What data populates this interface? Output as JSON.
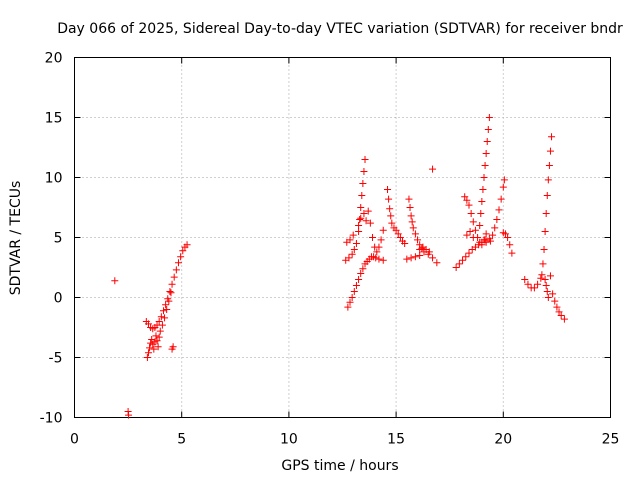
{
  "chart_data": {
    "type": "scatter",
    "title": "Day 066 of 2025, Sidereal Day-to-day VTEC variation (SDTVAR) for receiver bndr",
    "xlabel": "GPS time / hours",
    "ylabel": "SDTVAR / TECUs",
    "xlim": [
      0,
      25
    ],
    "ylim": [
      -10,
      20
    ],
    "xticks": [
      0,
      5,
      10,
      15,
      20,
      25
    ],
    "yticks": [
      -10,
      -5,
      0,
      5,
      10,
      15,
      20
    ],
    "xtick_labels": [
      "0",
      "5",
      "10",
      "15",
      "20",
      "25"
    ],
    "ytick_labels": [
      "-10",
      "-5",
      "0",
      "5",
      "10",
      "15",
      "20"
    ],
    "grid": true,
    "marker": "+",
    "color": "#ff0000",
    "points": [
      [
        1.88,
        1.4
      ],
      [
        2.5,
        -9.5
      ],
      [
        2.52,
        -9.8
      ],
      [
        4.55,
        -4.3
      ],
      [
        4.6,
        -4.1
      ],
      [
        16.7,
        10.7
      ],
      [
        3.35,
        -2.0
      ],
      [
        3.45,
        -2.2
      ],
      [
        3.55,
        -2.5
      ],
      [
        3.65,
        -2.6
      ],
      [
        3.75,
        -2.5
      ],
      [
        3.85,
        -2.3
      ],
      [
        3.95,
        -2.0
      ],
      [
        4.05,
        -1.6
      ],
      [
        4.15,
        -1.1
      ],
      [
        4.25,
        -0.6
      ],
      [
        4.35,
        -0.1
      ],
      [
        4.45,
        0.5
      ],
      [
        4.55,
        1.1
      ],
      [
        4.65,
        1.7
      ],
      [
        4.75,
        2.3
      ],
      [
        4.85,
        2.9
      ],
      [
        4.95,
        3.4
      ],
      [
        5.05,
        3.9
      ],
      [
        5.15,
        4.2
      ],
      [
        5.25,
        4.4
      ],
      [
        3.4,
        -5.0
      ],
      [
        3.45,
        -4.6
      ],
      [
        3.5,
        -4.2
      ],
      [
        3.55,
        -3.8
      ],
      [
        3.6,
        -3.5
      ],
      [
        3.65,
        -3.9
      ],
      [
        3.7,
        -4.3
      ],
      [
        3.75,
        -3.7
      ],
      [
        3.8,
        -3.2
      ],
      [
        3.85,
        -3.6
      ],
      [
        3.9,
        -4.1
      ],
      [
        3.95,
        -3.3
      ],
      [
        4.0,
        -2.8
      ],
      [
        4.1,
        -2.3
      ],
      [
        4.2,
        -1.7
      ],
      [
        4.3,
        -1.0
      ],
      [
        4.4,
        -0.3
      ],
      [
        4.5,
        0.4
      ],
      [
        12.75,
        -0.8
      ],
      [
        12.85,
        -0.4
      ],
      [
        12.95,
        0.0
      ],
      [
        13.05,
        0.5
      ],
      [
        13.15,
        1.0
      ],
      [
        13.25,
        1.5
      ],
      [
        13.35,
        2.0
      ],
      [
        13.45,
        2.4
      ],
      [
        13.55,
        2.8
      ],
      [
        13.65,
        3.0
      ],
      [
        13.75,
        3.2
      ],
      [
        13.85,
        3.4
      ],
      [
        13.95,
        3.4
      ],
      [
        14.05,
        3.3
      ],
      [
        14.2,
        3.2
      ],
      [
        14.4,
        3.1
      ],
      [
        12.65,
        3.1
      ],
      [
        12.8,
        3.3
      ],
      [
        12.95,
        3.6
      ],
      [
        13.05,
        4.0
      ],
      [
        13.15,
        4.5
      ],
      [
        13.25,
        5.5
      ],
      [
        13.3,
        6.5
      ],
      [
        13.35,
        7.5
      ],
      [
        13.4,
        8.5
      ],
      [
        13.45,
        9.5
      ],
      [
        13.5,
        10.5
      ],
      [
        13.55,
        11.5
      ],
      [
        13.25,
        6.0
      ],
      [
        13.35,
        6.6
      ],
      [
        13.5,
        7.0
      ],
      [
        13.6,
        6.4
      ],
      [
        13.7,
        7.2
      ],
      [
        13.8,
        6.2
      ],
      [
        13.9,
        5.0
      ],
      [
        14.0,
        4.2
      ],
      [
        14.1,
        3.8
      ],
      [
        14.2,
        4.2
      ],
      [
        14.3,
        4.8
      ],
      [
        14.4,
        5.6
      ],
      [
        12.7,
        4.6
      ],
      [
        12.85,
        4.8
      ],
      [
        13.0,
        5.2
      ],
      [
        14.6,
        9.0
      ],
      [
        14.65,
        8.2
      ],
      [
        14.7,
        7.4
      ],
      [
        14.75,
        6.8
      ],
      [
        14.8,
        6.2
      ],
      [
        14.9,
        5.8
      ],
      [
        15.0,
        5.6
      ],
      [
        15.1,
        5.3
      ],
      [
        15.2,
        5.0
      ],
      [
        15.3,
        4.7
      ],
      [
        15.4,
        4.5
      ],
      [
        15.6,
        8.2
      ],
      [
        15.65,
        7.5
      ],
      [
        15.7,
        6.8
      ],
      [
        15.75,
        6.3
      ],
      [
        15.8,
        5.8
      ],
      [
        15.9,
        5.3
      ],
      [
        16.0,
        4.8
      ],
      [
        16.1,
        4.4
      ],
      [
        16.2,
        4.1
      ],
      [
        15.5,
        3.2
      ],
      [
        15.7,
        3.3
      ],
      [
        15.9,
        3.4
      ],
      [
        16.1,
        3.5
      ],
      [
        16.3,
        3.8
      ],
      [
        16.5,
        3.6
      ],
      [
        16.7,
        3.3
      ],
      [
        16.9,
        2.9
      ],
      [
        16.1,
        4.0
      ],
      [
        16.25,
        4.2
      ],
      [
        16.4,
        4.0
      ],
      [
        16.55,
        3.8
      ],
      [
        17.8,
        2.5
      ],
      [
        17.95,
        2.8
      ],
      [
        18.1,
        3.1
      ],
      [
        18.25,
        3.4
      ],
      [
        18.4,
        3.7
      ],
      [
        18.55,
        4.0
      ],
      [
        18.7,
        4.2
      ],
      [
        18.85,
        4.4
      ],
      [
        19.0,
        4.6
      ],
      [
        19.15,
        4.8
      ],
      [
        18.2,
        8.4
      ],
      [
        18.3,
        8.1
      ],
      [
        18.4,
        7.7
      ],
      [
        18.5,
        7.0
      ],
      [
        18.6,
        6.3
      ],
      [
        18.7,
        5.6
      ],
      [
        18.8,
        5.0
      ],
      [
        18.9,
        4.6
      ],
      [
        19.0,
        4.4
      ],
      [
        19.1,
        4.8
      ],
      [
        19.2,
        5.3
      ],
      [
        18.9,
        6.0
      ],
      [
        18.95,
        7.0
      ],
      [
        19.0,
        8.0
      ],
      [
        19.05,
        9.0
      ],
      [
        19.1,
        10.0
      ],
      [
        19.15,
        11.0
      ],
      [
        19.2,
        12.0
      ],
      [
        19.25,
        13.0
      ],
      [
        19.3,
        14.0
      ],
      [
        19.35,
        15.0
      ],
      [
        19.4,
        4.7
      ],
      [
        19.5,
        5.2
      ],
      [
        19.6,
        5.8
      ],
      [
        19.7,
        6.5
      ],
      [
        19.8,
        7.3
      ],
      [
        19.9,
        8.2
      ],
      [
        20.0,
        9.2
      ],
      [
        20.05,
        9.8
      ],
      [
        18.3,
        5.2
      ],
      [
        18.45,
        5.5
      ],
      [
        18.6,
        5.0
      ],
      [
        19.2,
        4.6
      ],
      [
        19.35,
        4.9
      ],
      [
        20.0,
        5.4
      ],
      [
        20.1,
        5.3
      ],
      [
        20.2,
        5.0
      ],
      [
        20.3,
        4.4
      ],
      [
        20.4,
        3.7
      ],
      [
        21.0,
        1.5
      ],
      [
        21.15,
        1.1
      ],
      [
        21.3,
        0.8
      ],
      [
        21.45,
        0.8
      ],
      [
        21.6,
        1.1
      ],
      [
        21.75,
        1.6
      ],
      [
        21.8,
        1.9
      ],
      [
        21.85,
        2.8
      ],
      [
        21.9,
        4.0
      ],
      [
        21.95,
        5.5
      ],
      [
        22.0,
        7.0
      ],
      [
        22.05,
        8.5
      ],
      [
        22.1,
        9.8
      ],
      [
        22.15,
        11.0
      ],
      [
        22.2,
        12.2
      ],
      [
        22.25,
        13.4
      ],
      [
        21.95,
        1.5
      ],
      [
        22.0,
        1.0
      ],
      [
        22.05,
        0.5
      ],
      [
        22.1,
        0.0
      ],
      [
        22.2,
        1.8
      ],
      [
        22.3,
        0.3
      ],
      [
        22.4,
        -0.3
      ],
      [
        22.5,
        -0.8
      ],
      [
        22.6,
        -1.2
      ],
      [
        22.7,
        -1.5
      ],
      [
        22.85,
        -1.8
      ]
    ]
  }
}
